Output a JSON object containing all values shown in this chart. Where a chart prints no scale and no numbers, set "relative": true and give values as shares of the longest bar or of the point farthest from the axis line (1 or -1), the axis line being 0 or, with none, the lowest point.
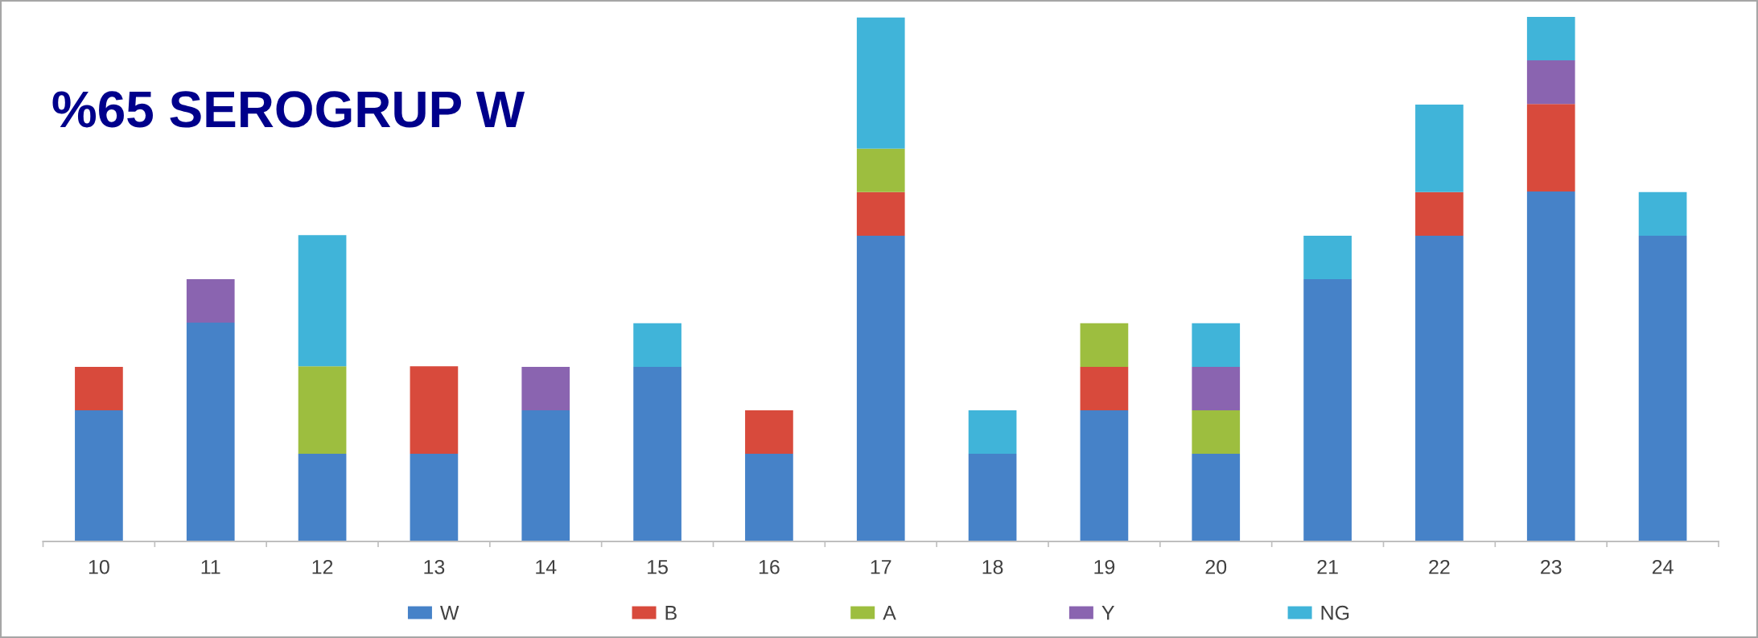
{
  "chart_data": {
    "type": "bar",
    "title": "%65 SEROGRUP W",
    "stacked": true,
    "relative": true,
    "legend": "bottom",
    "categories": [
      "10",
      "11",
      "12",
      "13",
      "14",
      "15",
      "16",
      "17",
      "18",
      "19",
      "20",
      "21",
      "22",
      "23",
      "24"
    ],
    "series": [
      {
        "name": "W",
        "color": "#4682c8",
        "values": [
          0.25,
          0.417,
          0.167,
          0.167,
          0.25,
          0.333,
          0.167,
          0.583,
          0.167,
          0.25,
          0.167,
          0.5,
          0.583,
          0.667,
          0.583
        ]
      },
      {
        "name": "B",
        "color": "#d84a3c",
        "values": [
          0.083,
          null,
          null,
          0.167,
          null,
          null,
          0.083,
          0.083,
          null,
          0.083,
          null,
          null,
          0.083,
          0.167,
          null
        ]
      },
      {
        "name": "A",
        "color": "#9dbe3f",
        "values": [
          null,
          null,
          0.167,
          null,
          null,
          null,
          null,
          0.083,
          null,
          0.083,
          0.083,
          null,
          null,
          null,
          null
        ]
      },
      {
        "name": "Y",
        "color": "#8a64b0",
        "values": [
          null,
          0.083,
          null,
          null,
          0.083,
          null,
          null,
          null,
          null,
          null,
          0.083,
          null,
          null,
          0.083,
          null
        ]
      },
      {
        "name": "NG",
        "color": "#40b4d9",
        "values": [
          null,
          null,
          0.25,
          null,
          null,
          0.083,
          null,
          0.25,
          0.083,
          null,
          0.083,
          0.083,
          0.167,
          0.083,
          0.083
        ]
      }
    ]
  }
}
